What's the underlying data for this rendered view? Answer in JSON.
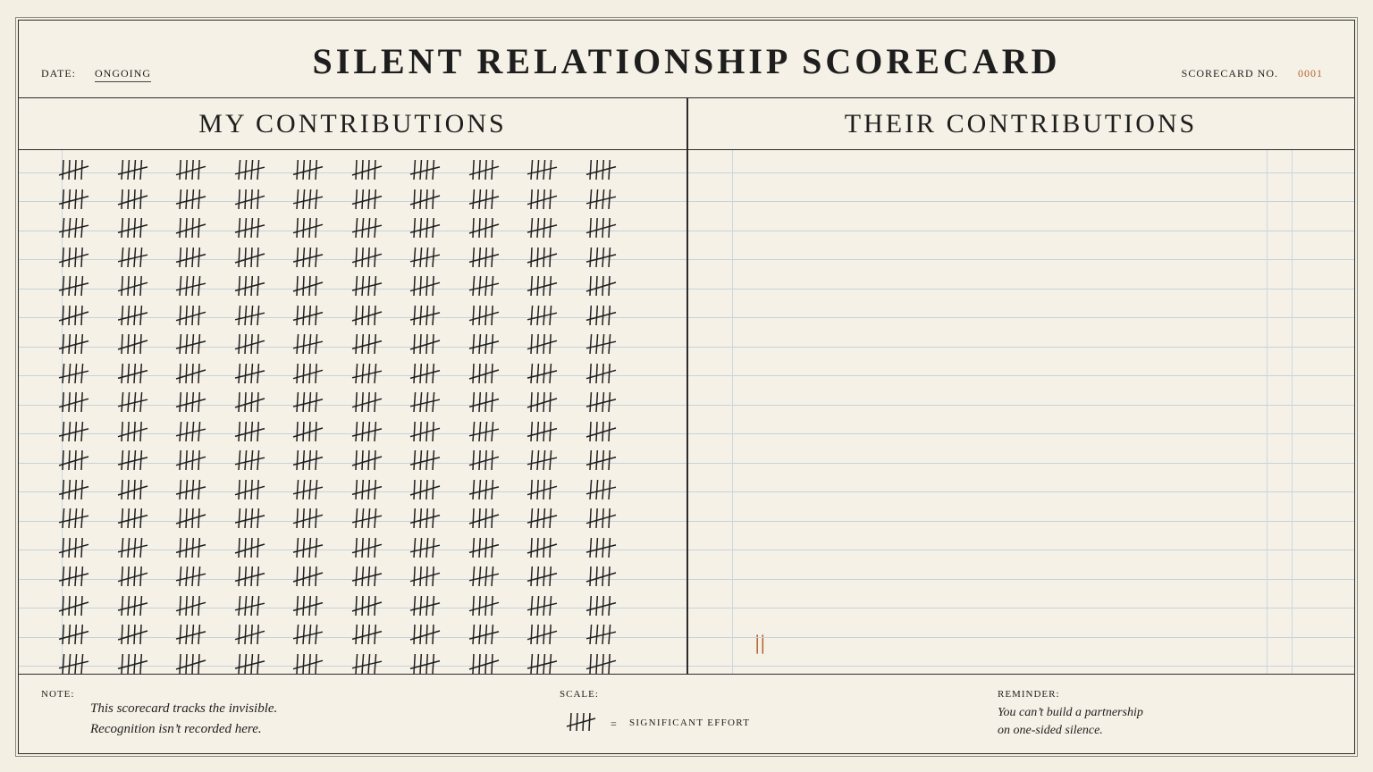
{
  "header": {
    "title": "SILENT RELATIONSHIP SCORECARD",
    "date_label": "DATE:",
    "date_value": "ONGOING",
    "scorecard_no_label": "SCORECARD NO.",
    "scorecard_no_value": "0001"
  },
  "columns": {
    "left_title": "MY CONTRIBUTIONS",
    "right_title": "THEIR CONTRIBUTIONS"
  },
  "tallies": {
    "my_groups_of_five": 180,
    "my_rows": 18,
    "my_groups_per_row": 10,
    "their_marks": 2
  },
  "footer": {
    "note_label": "NOTE:",
    "note_line1": "This scorecard tracks the invisible.",
    "note_line2": "Recognition isn’t recorded here.",
    "scale_label": "SCALE:",
    "scale_equals": "=",
    "scale_text": "SIGNIFICANT EFFORT",
    "reminder_label": "REMINDER:",
    "reminder_line1": "You can’t build a partnership",
    "reminder_line2": "on one-sided silence."
  },
  "colors": {
    "ink": "#1e1e1e",
    "accent": "#b5622c",
    "paper": "#f6f1e6",
    "ruling": "#c5d2dc"
  }
}
